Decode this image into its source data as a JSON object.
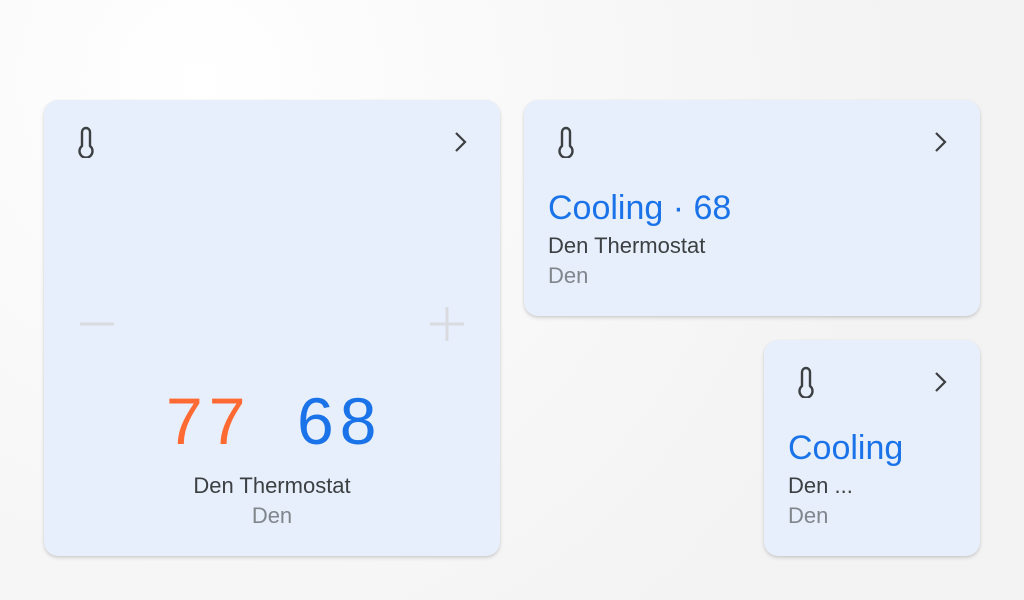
{
  "colors": {
    "card_bg": "#e8effc",
    "heat": "#ff6a33",
    "cool": "#1a73e8",
    "text": "#3c4043",
    "muted": "#80868b"
  },
  "large_card": {
    "icon": "thermometer-icon",
    "chevron": "chevron-right-icon",
    "current_temp": "77",
    "setpoint": "68",
    "decrease_icon": "minus-icon",
    "increase_icon": "plus-icon",
    "name": "Den Thermostat",
    "room": "Den"
  },
  "medium_card": {
    "icon": "thermometer-icon",
    "chevron": "chevron-right-icon",
    "status": "Cooling · 68",
    "name": "Den Thermostat",
    "room": "Den"
  },
  "small_card": {
    "icon": "thermometer-icon",
    "chevron": "chevron-right-icon",
    "status": "Cooling",
    "name": "Den ...",
    "room": "Den"
  }
}
